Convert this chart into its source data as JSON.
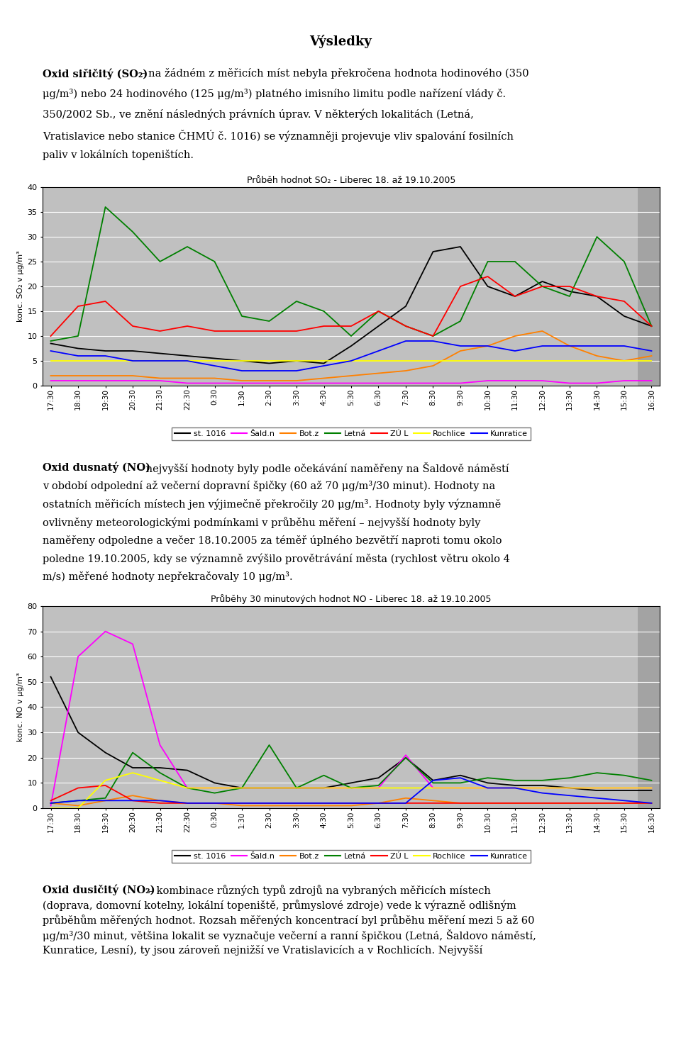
{
  "title": "Výsledky",
  "chart1_title": "Průběh hodnot SO₂ - Liberec 18. až 19.10.2005",
  "chart1_ylabel": "konc. SO₂ v μg/m³",
  "chart1_ylim": [
    0,
    40
  ],
  "chart1_yticks": [
    0,
    5,
    10,
    15,
    20,
    25,
    30,
    35,
    40
  ],
  "chart2_title": "Průběhy 30 minutových hodnot NO - Liberec 18. až 19.10.2005",
  "chart2_ylabel": "konc. NO v μg/m³",
  "chart2_ylim": [
    0,
    80
  ],
  "chart2_yticks": [
    0,
    10,
    20,
    30,
    40,
    50,
    60,
    70,
    80
  ],
  "x_labels": [
    "17:30",
    "18:30",
    "19:30",
    "20:30",
    "21:30",
    "22:30",
    "0:30",
    "1:30",
    "2:30",
    "3:30",
    "4:30",
    "5:30",
    "6:30",
    "7:30",
    "8:30",
    "9:30",
    "10:30",
    "11:30",
    "12:30",
    "13:30",
    "14:30",
    "15:30",
    "16:30"
  ],
  "legend_labels": [
    "st. 1016",
    "Šald.n",
    "Bot.z",
    "Letná",
    "ZÚ L",
    "Rochlice",
    "Kunratice"
  ],
  "legend_colors": [
    "#000000",
    "#ff00ff",
    "#ff8000",
    "#008000",
    "#ff0000",
    "#ffff00",
    "#0000ff"
  ],
  "so2_st1016": [
    8.5,
    7.5,
    7.0,
    7.0,
    6.5,
    6.0,
    5.5,
    5.0,
    4.5,
    5.0,
    4.5,
    8.0,
    12.0,
    16.0,
    27.0,
    28.0,
    20.0,
    18.0,
    21.0,
    19.0,
    18.0,
    14.0,
    12.0
  ],
  "so2_saldn": [
    1.0,
    1.0,
    1.0,
    1.0,
    1.0,
    0.5,
    0.5,
    0.5,
    0.5,
    0.5,
    0.5,
    0.5,
    0.5,
    0.5,
    0.5,
    0.5,
    1.0,
    1.0,
    1.0,
    0.5,
    0.5,
    1.0,
    1.0
  ],
  "so2_botz": [
    2.0,
    2.0,
    2.0,
    2.0,
    1.5,
    1.5,
    1.5,
    1.0,
    1.0,
    1.0,
    1.5,
    2.0,
    2.5,
    3.0,
    4.0,
    7.0,
    8.0,
    10.0,
    11.0,
    8.0,
    6.0,
    5.0,
    6.0
  ],
  "so2_letna": [
    9.0,
    10.0,
    36.0,
    31.0,
    25.0,
    28.0,
    25.0,
    14.0,
    13.0,
    17.0,
    15.0,
    10.0,
    15.0,
    12.0,
    10.0,
    13.0,
    25.0,
    25.0,
    20.0,
    18.0,
    30.0,
    25.0,
    12.0
  ],
  "so2_zul": [
    10.0,
    16.0,
    17.0,
    12.0,
    11.0,
    12.0,
    11.0,
    11.0,
    11.0,
    11.0,
    12.0,
    12.0,
    15.0,
    12.0,
    10.0,
    20.0,
    22.0,
    18.0,
    20.0,
    20.0,
    18.0,
    17.0,
    12.0
  ],
  "so2_rochlice": [
    5.0,
    5.0,
    5.0,
    5.0,
    5.0,
    5.0,
    5.0,
    5.0,
    5.0,
    5.0,
    5.0,
    5.0,
    5.0,
    5.0,
    5.0,
    5.0,
    5.0,
    5.0,
    5.0,
    5.0,
    5.0,
    5.0,
    5.0
  ],
  "so2_kunratice": [
    7.0,
    6.0,
    6.0,
    5.0,
    5.0,
    5.0,
    4.0,
    3.0,
    3.0,
    3.0,
    4.0,
    5.0,
    7.0,
    9.0,
    9.0,
    8.0,
    8.0,
    7.0,
    8.0,
    8.0,
    8.0,
    8.0,
    7.0
  ],
  "no_st1016": [
    52.0,
    30.0,
    22.0,
    16.0,
    16.0,
    15.0,
    10.0,
    8.0,
    8.0,
    8.0,
    8.0,
    10.0,
    12.0,
    20.0,
    11.0,
    13.0,
    10.0,
    9.0,
    9.0,
    8.0,
    7.0,
    7.0,
    7.0
  ],
  "no_saldn": [
    1.0,
    60.0,
    70.0,
    65.0,
    25.0,
    8.0,
    8.0,
    8.0,
    8.0,
    8.0,
    8.0,
    8.0,
    8.0,
    21.0,
    8.0,
    8.0,
    8.0,
    8.0,
    8.0,
    8.0,
    8.0,
    8.0,
    8.0
  ],
  "no_botz": [
    2.0,
    1.0,
    3.0,
    5.0,
    3.0,
    2.0,
    2.0,
    1.0,
    1.0,
    1.0,
    1.0,
    1.0,
    2.0,
    4.0,
    3.0,
    2.0,
    2.0,
    2.0,
    2.0,
    2.0,
    2.0,
    2.0,
    2.0
  ],
  "no_letna": [
    2.0,
    3.0,
    4.0,
    22.0,
    14.0,
    8.0,
    6.0,
    8.0,
    25.0,
    8.0,
    13.0,
    8.0,
    9.0,
    20.0,
    10.0,
    10.0,
    12.0,
    11.0,
    11.0,
    12.0,
    14.0,
    13.0,
    11.0
  ],
  "no_zul": [
    3.0,
    8.0,
    9.0,
    3.0,
    2.0,
    2.0,
    2.0,
    2.0,
    2.0,
    2.0,
    2.0,
    2.0,
    2.0,
    2.0,
    2.0,
    2.0,
    2.0,
    2.0,
    2.0,
    2.0,
    2.0,
    2.0,
    2.0
  ],
  "no_rochlice": [
    0.0,
    0.0,
    11.0,
    14.0,
    11.0,
    8.0,
    8.0,
    8.0,
    8.0,
    8.0,
    8.0,
    8.0,
    8.0,
    8.0,
    8.0,
    8.0,
    8.0,
    8.0,
    8.0,
    8.0,
    8.0,
    8.0,
    8.0
  ],
  "no_kunratice": [
    2.0,
    3.0,
    3.0,
    3.0,
    3.0,
    2.0,
    2.0,
    2.0,
    2.0,
    2.0,
    2.0,
    2.0,
    2.0,
    2.0,
    11.0,
    12.0,
    8.0,
    8.0,
    6.0,
    5.0,
    4.0,
    3.0,
    2.0
  ],
  "plot_bg": "#c0c0c0",
  "right_band_color": "#a8a8a8",
  "white_bg": "#ffffff",
  "font_size_body": 10.5,
  "font_size_chart_title": 9,
  "font_size_axis": 8,
  "font_size_tick": 8,
  "font_size_legend": 8,
  "font_size_page_title": 13
}
